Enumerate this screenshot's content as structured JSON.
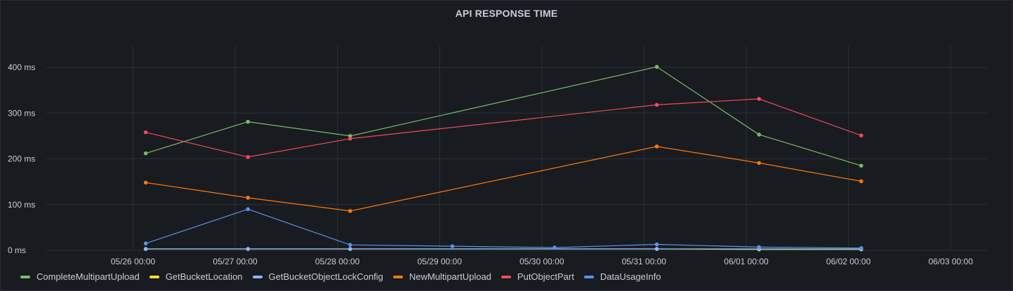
{
  "panel": {
    "title": "API RESPONSE TIME"
  },
  "chart_data": {
    "type": "line",
    "title": "API RESPONSE TIME",
    "x": [
      "05/26 03:00",
      "05/27 03:00",
      "05/28 03:00",
      "05/29 03:00",
      "05/30 03:00",
      "05/31 03:00",
      "06/01 03:00",
      "06/02 03:00"
    ],
    "xticks": [
      "05/26 00:00",
      "05/27 00:00",
      "05/28 00:00",
      "05/29 00:00",
      "05/30 00:00",
      "05/31 00:00",
      "06/01 00:00",
      "06/02 00:00",
      "06/03 00:00"
    ],
    "yticks": [
      "0 ms",
      "100 ms",
      "200 ms",
      "300 ms",
      "400 ms"
    ],
    "ylim": [
      0,
      400
    ],
    "xlim": [
      "05/25 00:00",
      "06/03 00:00"
    ],
    "grid": true,
    "legend_position": "bottom",
    "series": [
      {
        "name": "CompleteMultipartUpload",
        "color": "#73bf69",
        "x": [
          "05/26 03:00",
          "05/27 03:00",
          "05/28 03:00",
          "05/31 03:00",
          "06/01 03:00",
          "06/02 03:00"
        ],
        "values": [
          212,
          281,
          250,
          401,
          253,
          185
        ]
      },
      {
        "name": "GetBucketLocation",
        "color": "#fade2a",
        "x": [
          "05/26 03:00",
          "05/27 03:00",
          "05/28 03:00",
          "05/31 03:00",
          "06/01 03:00",
          "06/02 03:00"
        ],
        "values": [
          3,
          3,
          3,
          3,
          2,
          2
        ]
      },
      {
        "name": "GetBucketObjectLockConfig",
        "color": "#8ab8ff",
        "x": [
          "05/26 03:00",
          "05/27 03:00",
          "05/28 03:00",
          "05/31 03:00",
          "06/01 03:00",
          "06/02 03:00"
        ],
        "values": [
          3,
          3,
          3,
          3,
          3,
          3
        ]
      },
      {
        "name": "NewMultipartUpload",
        "color": "#ff780a",
        "x": [
          "05/26 03:00",
          "05/27 03:00",
          "05/28 03:00",
          "05/31 03:00",
          "06/01 03:00",
          "06/02 03:00"
        ],
        "values": [
          148,
          115,
          86,
          227,
          191,
          151
        ]
      },
      {
        "name": "PutObjectPart",
        "color": "#f2495c",
        "x": [
          "05/26 03:00",
          "05/27 03:00",
          "05/28 03:00",
          "05/31 03:00",
          "06/01 03:00",
          "06/02 03:00"
        ],
        "values": [
          258,
          204,
          244,
          318,
          331,
          251
        ]
      },
      {
        "name": "DataUsageInfo",
        "color": "#5794f2",
        "x": [
          "05/26 03:00",
          "05/27 03:00",
          "05/28 03:00",
          "05/29 03:00",
          "05/30 03:00",
          "05/31 03:00",
          "06/01 03:00",
          "06/02 03:00"
        ],
        "values": [
          15,
          90,
          12,
          9,
          6,
          13,
          7,
          5
        ]
      }
    ]
  }
}
